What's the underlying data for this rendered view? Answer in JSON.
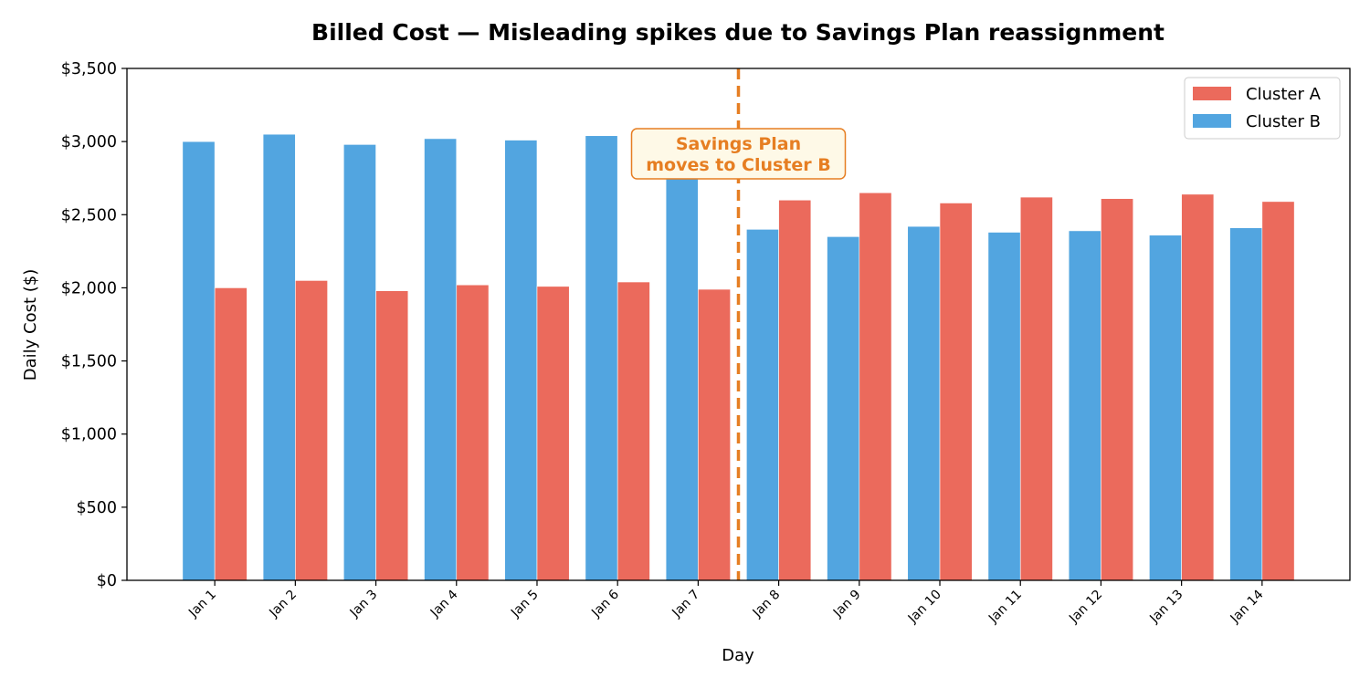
{
  "chart_data": {
    "type": "bar",
    "title": "Billed Cost — Misleading spikes due to Savings Plan reassignment",
    "xlabel": "Day",
    "ylabel": "Daily Cost ($)",
    "ylim": [
      0,
      3500
    ],
    "yticks": [
      0,
      500,
      1000,
      1500,
      2000,
      2500,
      3000,
      3500
    ],
    "ytick_labels": [
      "$0",
      "$500",
      "$1,000",
      "$1,500",
      "$2,000",
      "$2,500",
      "$3,000",
      "$3,500"
    ],
    "categories": [
      "Jan 1",
      "Jan 2",
      "Jan 3",
      "Jan 4",
      "Jan 5",
      "Jan 6",
      "Jan 7",
      "Jan 8",
      "Jan 9",
      "Jan 10",
      "Jan 11",
      "Jan 12",
      "Jan 13",
      "Jan 14"
    ],
    "series": [
      {
        "name": "Cluster A",
        "color": "#eb6a5c",
        "values": [
          2000,
          2050,
          1980,
          2020,
          2010,
          2040,
          1990,
          2600,
          2650,
          2580,
          2620,
          2610,
          2640,
          2590
        ]
      },
      {
        "name": "Cluster B",
        "color": "#52a5e0",
        "values": [
          3000,
          3050,
          2980,
          3020,
          3010,
          3040,
          2990,
          2400,
          2350,
          2420,
          2380,
          2390,
          2360,
          2410
        ]
      }
    ],
    "legend_position": "top-right",
    "grid": false,
    "annotation": {
      "text_lines": [
        "Savings Plan",
        "moves to Cluster B"
      ],
      "between_categories": [
        "Jan 7",
        "Jan 8"
      ],
      "color": "#e67e22",
      "box_fill": "#fef9e7"
    }
  }
}
